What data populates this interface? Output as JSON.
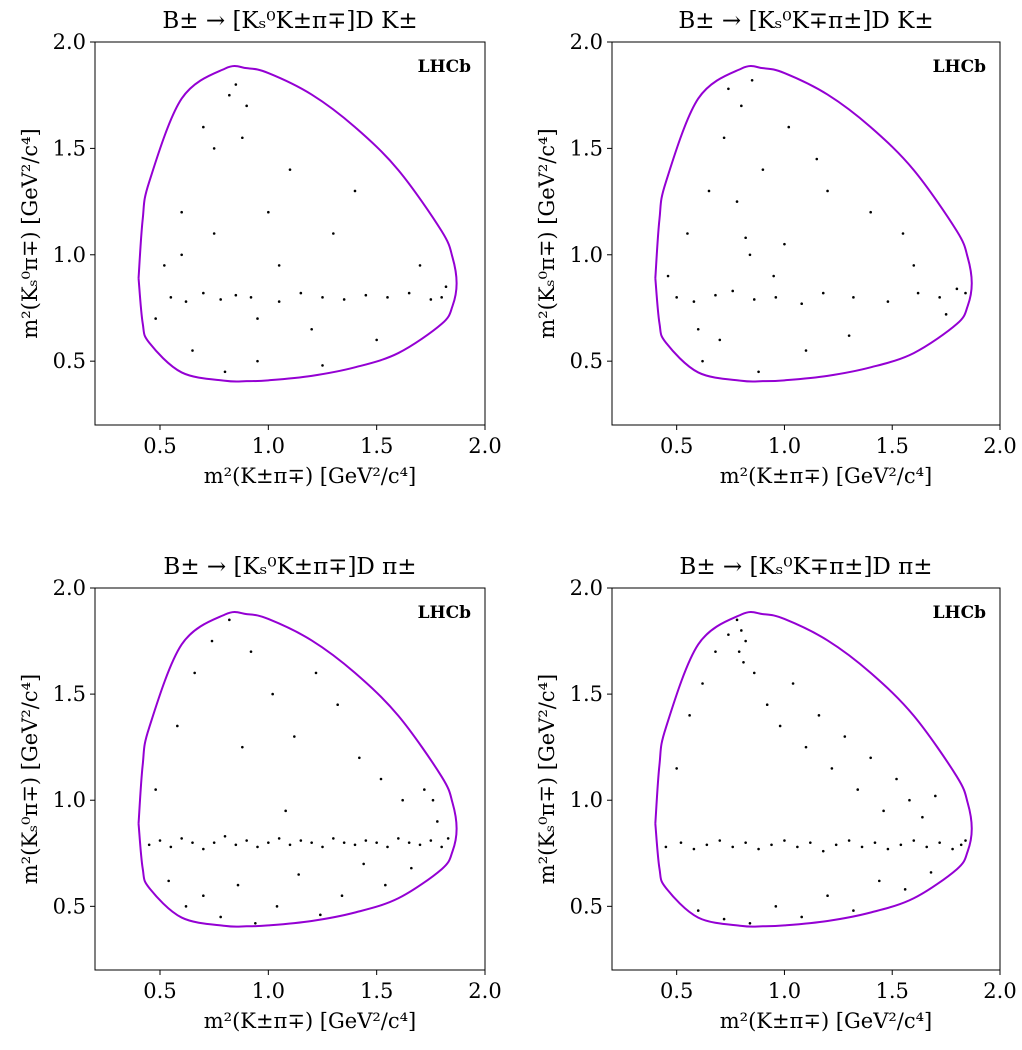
{
  "chart_data": [
    {
      "type": "scatter",
      "title": "B± → [Kₛ⁰K±π∓]D K±",
      "xlabel": "m²(K±π∓) [GeV²/c⁴]",
      "ylabel": "m²(Kₛ⁰π∓) [GeV²/c⁴]",
      "annotation": "LHCb",
      "xlim": [
        0.2,
        2.0
      ],
      "ylim": [
        0.2,
        2.0
      ],
      "xticks": [
        0.5,
        {
          "value": 1,
          "label": "1.0"
        },
        1.5,
        {
          "value": 2,
          "label": "2.0"
        }
      ],
      "yticks": [
        0.5,
        {
          "value": 1,
          "label": "1.0"
        },
        1.5,
        {
          "value": 2,
          "label": "2.0"
        }
      ],
      "grid": false,
      "boundary": {
        "color": "#9400d3",
        "x": [
          0.401,
          0.42,
          0.45,
          0.6,
          0.8,
          0.9,
          1.0,
          1.2,
          1.4,
          1.6,
          1.8,
          1.85,
          1.869,
          1.85,
          1.8,
          1.6,
          1.4,
          1.2,
          1.0,
          0.9,
          0.8,
          0.6,
          0.45,
          0.42,
          0.401
        ],
        "y": [
          0.89,
          1.165,
          1.342,
          1.734,
          1.875,
          1.877,
          1.854,
          1.753,
          1.6,
          1.398,
          1.111,
          0.988,
          0.866,
          0.759,
          0.675,
          0.538,
          0.471,
          0.431,
          0.41,
          0.406,
          0.408,
          0.447,
          0.587,
          0.679,
          0.89
        ]
      },
      "points": {
        "color": "#000000",
        "x": [
          0.55,
          0.62,
          0.7,
          0.78,
          0.85,
          0.92,
          1.05,
          1.15,
          1.25,
          1.35,
          1.45,
          1.55,
          1.65,
          1.75,
          1.8,
          0.48,
          0.52,
          0.6,
          0.75,
          0.9,
          1.1,
          1.3,
          1.5,
          1.7,
          1.82,
          0.65,
          0.8,
          0.95,
          1.2,
          1.4,
          0.7,
          0.85,
          1.0,
          0.6,
          0.75,
          0.88,
          1.05,
          1.25,
          0.82,
          0.95
        ],
        "y": [
          0.8,
          0.78,
          0.82,
          0.79,
          0.81,
          0.8,
          0.78,
          0.82,
          0.8,
          0.79,
          0.81,
          0.8,
          0.82,
          0.79,
          0.8,
          0.7,
          0.95,
          1.2,
          1.5,
          1.7,
          1.4,
          1.1,
          0.6,
          0.95,
          0.85,
          0.55,
          0.45,
          0.5,
          0.65,
          1.3,
          1.6,
          1.8,
          1.2,
          1.0,
          1.1,
          1.55,
          0.95,
          0.48,
          1.75,
          0.7
        ]
      }
    },
    {
      "type": "scatter",
      "title": "B± → [Kₛ⁰K∓π±]D K±",
      "xlabel": "m²(K±π∓) [GeV²/c⁴]",
      "ylabel": "m²(Kₛ⁰π∓) [GeV²/c⁴]",
      "annotation": "LHCb",
      "xlim": [
        0.2,
        2.0
      ],
      "ylim": [
        0.2,
        2.0
      ],
      "xticks": [
        0.5,
        {
          "value": 1,
          "label": "1.0"
        },
        1.5,
        {
          "value": 2,
          "label": "2.0"
        }
      ],
      "yticks": [
        0.5,
        {
          "value": 1,
          "label": "1.0"
        },
        1.5,
        {
          "value": 2,
          "label": "2.0"
        }
      ],
      "grid": false,
      "boundary": {
        "color": "#9400d3",
        "x": [
          0.401,
          0.42,
          0.45,
          0.6,
          0.8,
          0.9,
          1.0,
          1.2,
          1.4,
          1.6,
          1.8,
          1.85,
          1.869,
          1.85,
          1.8,
          1.6,
          1.4,
          1.2,
          1.0,
          0.9,
          0.8,
          0.6,
          0.45,
          0.42,
          0.401
        ],
        "y": [
          0.89,
          1.165,
          1.342,
          1.734,
          1.875,
          1.877,
          1.854,
          1.753,
          1.6,
          1.398,
          1.111,
          0.988,
          0.866,
          0.759,
          0.675,
          0.538,
          0.471,
          0.431,
          0.41,
          0.406,
          0.408,
          0.447,
          0.587,
          0.679,
          0.89
        ]
      },
      "points": {
        "color": "#000000",
        "x": [
          0.5,
          0.58,
          0.68,
          0.76,
          0.86,
          0.96,
          1.08,
          1.18,
          1.32,
          1.48,
          1.62,
          1.72,
          1.8,
          0.46,
          0.55,
          0.65,
          0.72,
          0.8,
          0.85,
          0.9,
          0.78,
          1.0,
          1.2,
          1.4,
          1.6,
          1.75,
          0.62,
          0.88,
          1.1,
          1.3,
          0.7,
          0.84,
          1.02,
          1.55,
          0.95,
          0.74,
          1.15,
          0.6,
          1.84,
          0.82
        ],
        "y": [
          0.8,
          0.78,
          0.81,
          0.83,
          0.79,
          0.8,
          0.77,
          0.82,
          0.8,
          0.78,
          0.82,
          0.8,
          0.84,
          0.9,
          1.1,
          1.3,
          1.55,
          1.7,
          1.82,
          1.4,
          1.25,
          1.05,
          1.3,
          1.2,
          0.95,
          0.72,
          0.5,
          0.45,
          0.55,
          0.62,
          0.6,
          1.0,
          1.6,
          1.1,
          0.9,
          1.78,
          1.45,
          0.65,
          0.82,
          1.08
        ]
      }
    },
    {
      "type": "scatter",
      "title": "B± → [Kₛ⁰K±π∓]D π±",
      "xlabel": "m²(K±π∓) [GeV²/c⁴]",
      "ylabel": "m²(Kₛ⁰π∓) [GeV²/c⁴]",
      "annotation": "LHCb",
      "xlim": [
        0.2,
        2.0
      ],
      "ylim": [
        0.2,
        2.0
      ],
      "xticks": [
        0.5,
        {
          "value": 1,
          "label": "1.0"
        },
        1.5,
        {
          "value": 2,
          "label": "2.0"
        }
      ],
      "yticks": [
        0.5,
        {
          "value": 1,
          "label": "1.0"
        },
        1.5,
        {
          "value": 2,
          "label": "2.0"
        }
      ],
      "grid": false,
      "boundary": {
        "color": "#9400d3",
        "x": [
          0.401,
          0.42,
          0.45,
          0.6,
          0.8,
          0.9,
          1.0,
          1.2,
          1.4,
          1.6,
          1.8,
          1.85,
          1.869,
          1.85,
          1.8,
          1.6,
          1.4,
          1.2,
          1.0,
          0.9,
          0.8,
          0.6,
          0.45,
          0.42,
          0.401
        ],
        "y": [
          0.89,
          1.165,
          1.342,
          1.734,
          1.875,
          1.877,
          1.854,
          1.753,
          1.6,
          1.398,
          1.111,
          0.988,
          0.866,
          0.759,
          0.675,
          0.538,
          0.471,
          0.431,
          0.41,
          0.406,
          0.408,
          0.447,
          0.587,
          0.679,
          0.89
        ]
      },
      "points": {
        "color": "#000000",
        "x": [
          0.45,
          0.5,
          0.55,
          0.6,
          0.65,
          0.7,
          0.75,
          0.8,
          0.85,
          0.9,
          0.95,
          1.0,
          1.05,
          1.1,
          1.15,
          1.2,
          1.25,
          1.3,
          1.35,
          1.4,
          1.45,
          1.5,
          1.55,
          1.6,
          1.65,
          1.7,
          1.75,
          1.8,
          1.83,
          1.78,
          0.48,
          0.58,
          0.66,
          0.74,
          0.82,
          0.92,
          1.02,
          1.12,
          1.22,
          1.32,
          1.42,
          1.52,
          1.62,
          1.72,
          0.62,
          0.7,
          0.78,
          0.86,
          0.94,
          1.04,
          1.14,
          1.24,
          1.34,
          1.44,
          1.54,
          1.66,
          1.76,
          0.54,
          0.88,
          1.08
        ],
        "y": [
          0.79,
          0.81,
          0.78,
          0.82,
          0.8,
          0.77,
          0.8,
          0.83,
          0.79,
          0.81,
          0.78,
          0.8,
          0.82,
          0.79,
          0.81,
          0.8,
          0.78,
          0.82,
          0.8,
          0.79,
          0.81,
          0.8,
          0.78,
          0.82,
          0.8,
          0.79,
          0.81,
          0.78,
          0.82,
          0.9,
          1.05,
          1.35,
          1.6,
          1.75,
          1.85,
          1.7,
          1.5,
          1.3,
          1.6,
          1.45,
          1.2,
          1.1,
          1.0,
          1.05,
          0.5,
          0.55,
          0.45,
          0.6,
          0.42,
          0.5,
          0.65,
          0.46,
          0.55,
          0.7,
          0.6,
          0.68,
          1.0,
          0.62,
          1.25,
          0.95
        ]
      }
    },
    {
      "type": "scatter",
      "title": "B± → [Kₛ⁰K∓π±]D π±",
      "xlabel": "m²(K±π∓) [GeV²/c⁴]",
      "ylabel": "m²(Kₛ⁰π∓) [GeV²/c⁴]",
      "annotation": "LHCb",
      "xlim": [
        0.2,
        2.0
      ],
      "ylim": [
        0.2,
        2.0
      ],
      "xticks": [
        0.5,
        {
          "value": 1,
          "label": "1.0"
        },
        1.5,
        {
          "value": 2,
          "label": "2.0"
        }
      ],
      "yticks": [
        0.5,
        {
          "value": 1,
          "label": "1.0"
        },
        1.5,
        {
          "value": 2,
          "label": "2.0"
        }
      ],
      "grid": false,
      "boundary": {
        "color": "#9400d3",
        "x": [
          0.401,
          0.42,
          0.45,
          0.6,
          0.8,
          0.9,
          1.0,
          1.2,
          1.4,
          1.6,
          1.8,
          1.85,
          1.869,
          1.85,
          1.8,
          1.6,
          1.4,
          1.2,
          1.0,
          0.9,
          0.8,
          0.6,
          0.45,
          0.42,
          0.401
        ],
        "y": [
          0.89,
          1.165,
          1.342,
          1.734,
          1.875,
          1.877,
          1.854,
          1.753,
          1.6,
          1.398,
          1.111,
          0.988,
          0.866,
          0.759,
          0.675,
          0.538,
          0.471,
          0.431,
          0.41,
          0.406,
          0.408,
          0.447,
          0.587,
          0.679,
          0.89
        ]
      },
      "points": {
        "color": "#000000",
        "x": [
          0.45,
          0.52,
          0.58,
          0.64,
          0.7,
          0.76,
          0.82,
          0.88,
          0.94,
          1.0,
          1.06,
          1.12,
          1.18,
          1.24,
          1.3,
          1.36,
          1.42,
          1.48,
          1.54,
          1.6,
          1.66,
          1.72,
          1.78,
          1.82,
          1.84,
          0.78,
          0.8,
          0.82,
          0.79,
          0.81,
          0.5,
          0.56,
          0.62,
          0.68,
          0.74,
          0.86,
          0.92,
          0.98,
          1.04,
          1.1,
          1.16,
          1.22,
          1.28,
          1.34,
          1.4,
          1.46,
          1.52,
          1.58,
          1.64,
          1.7,
          0.6,
          0.72,
          0.84,
          0.96,
          1.08,
          1.2,
          1.32,
          1.44,
          1.56,
          1.68
        ],
        "y": [
          0.78,
          0.8,
          0.77,
          0.79,
          0.81,
          0.78,
          0.8,
          0.77,
          0.79,
          0.81,
          0.78,
          0.8,
          0.76,
          0.79,
          0.81,
          0.78,
          0.8,
          0.77,
          0.79,
          0.81,
          0.78,
          0.8,
          0.77,
          0.79,
          0.81,
          1.85,
          1.8,
          1.75,
          1.7,
          1.65,
          1.15,
          1.4,
          1.55,
          1.7,
          1.78,
          1.6,
          1.45,
          1.35,
          1.55,
          1.25,
          1.4,
          1.15,
          1.3,
          1.05,
          1.2,
          0.95,
          1.1,
          1.0,
          0.92,
          1.02,
          0.48,
          0.44,
          0.42,
          0.5,
          0.45,
          0.55,
          0.48,
          0.62,
          0.58,
          0.66
        ]
      }
    }
  ]
}
